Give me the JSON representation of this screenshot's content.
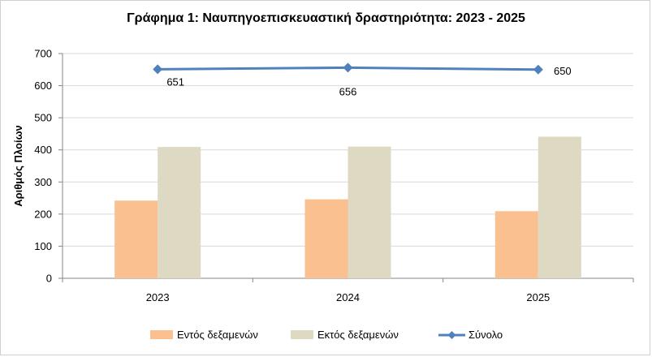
{
  "chart_data": {
    "type": "bar",
    "title": "Γράφημα 1: Ναυπηγοεπισκευαστική δραστηριότητα: 2023 - 2025",
    "ylabel": "Αριθμός Πλοίων",
    "xlabel": "",
    "ylim": [
      0,
      700
    ],
    "yticks": [
      0,
      100,
      200,
      300,
      400,
      500,
      600,
      700
    ],
    "categories": [
      "2023",
      "2024",
      "2025"
    ],
    "series": [
      {
        "name": "Εντός δεξαμενών",
        "type": "bar",
        "color": "#FAC090",
        "values": [
          242,
          246,
          209
        ]
      },
      {
        "name": "Εκτός δεξαμενών",
        "type": "bar",
        "color": "#DDD9C3",
        "values": [
          409,
          410,
          441
        ]
      },
      {
        "name": "Σύνολο",
        "type": "line",
        "color": "#4F81BD",
        "values": [
          651,
          656,
          650
        ],
        "data_labels": [
          "651",
          "656",
          "650"
        ]
      }
    ],
    "grid": true,
    "legend_position": "bottom"
  }
}
